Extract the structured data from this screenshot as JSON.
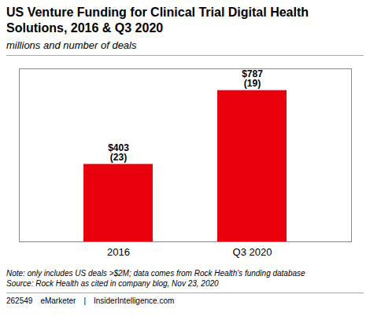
{
  "chart_data": {
    "type": "bar",
    "title": "US Venture Funding for Clinical Trial Digital Health\nSolutions, 2016 & Q3 2020",
    "subtitle": "millions and number of deals",
    "categories": [
      "2016",
      "Q3 2020"
    ],
    "values": [
      403,
      787
    ],
    "value_labels": [
      "$403\n(23)",
      "$787\n(19)"
    ],
    "data_labels": true,
    "color": "#e8000d",
    "ylim": [
      0,
      900
    ],
    "yticks": [],
    "tick_labels": "x",
    "grid": false,
    "note": "Note: only includes US deals >$2M; data comes from Rock Health's funding database\nSource: Rock Health as cited in company blog, Nov 23, 2020",
    "footer": [
      "262549",
      "eMarketer",
      "|",
      "InsiderIntelligence.com"
    ]
  }
}
